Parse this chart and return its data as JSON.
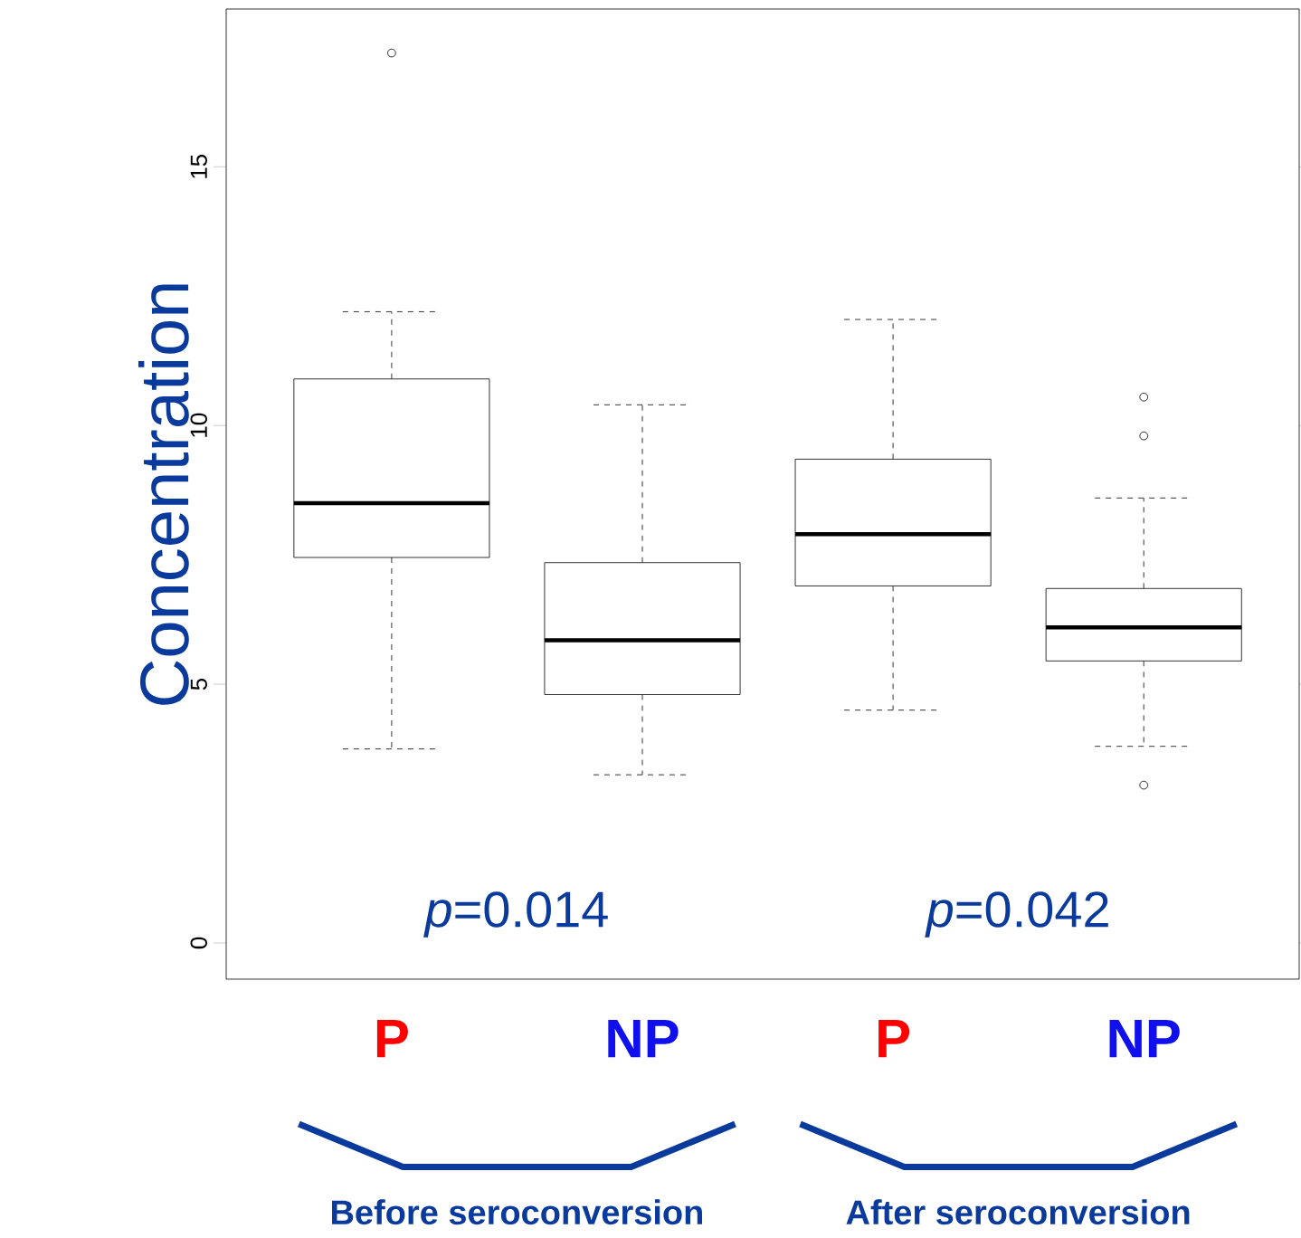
{
  "chart_data": {
    "type": "box",
    "ylabel": "Concentration",
    "categories": [
      "P",
      "NP",
      "P",
      "NP"
    ],
    "boxes": [
      {
        "low": 3.75,
        "q1": 7.45,
        "median": 8.5,
        "q3": 10.9,
        "high": 12.2,
        "outliers": [
          17.2
        ]
      },
      {
        "low": 3.25,
        "q1": 4.8,
        "median": 5.85,
        "q3": 7.35,
        "high": 10.4
      },
      {
        "low": 4.5,
        "q1": 6.9,
        "median": 7.9,
        "q3": 9.35,
        "high": 12.05
      },
      {
        "low": 3.8,
        "q1": 5.45,
        "median": 6.1,
        "q3": 6.85,
        "high": 8.6,
        "outliers": [
          10.55,
          9.8,
          3.05
        ]
      }
    ],
    "ylim": [
      -0.7,
      18.05
    ],
    "yticks": [
      0,
      5,
      10,
      15
    ],
    "grid": false,
    "marker": "circle",
    "annotations": [
      "*p*=0.014",
      "*p*=0.042",
      "Before seroconversion",
      "After seroconversion"
    ]
  }
}
